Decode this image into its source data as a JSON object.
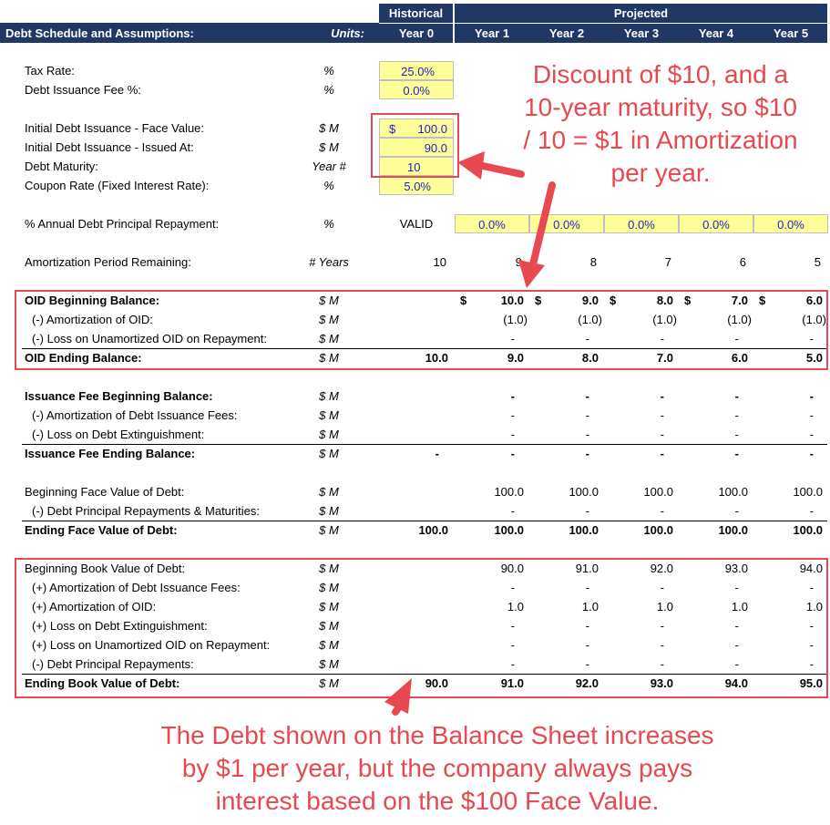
{
  "header": {
    "title": "Debt Schedule and Assumptions:",
    "units_label": "Units:",
    "historical": "Historical",
    "projected": "Projected",
    "years": [
      "Year 0",
      "Year 1",
      "Year 2",
      "Year 3",
      "Year 4",
      "Year 5"
    ]
  },
  "assumptions": {
    "tax_rate": {
      "label": "Tax Rate:",
      "unit": "%",
      "value": "25.0%"
    },
    "fee_pct": {
      "label": "Debt Issuance Fee %:",
      "unit": "%",
      "value": "0.0%"
    },
    "face_value": {
      "label": "Initial Debt Issuance - Face Value:",
      "unit": "$ M",
      "dollar": "$",
      "value": "100.0"
    },
    "issued_at": {
      "label": "Initial Debt Issuance - Issued At:",
      "unit": "$ M",
      "value": "90.0"
    },
    "maturity": {
      "label": "Debt Maturity:",
      "unit": "Year #",
      "value": "10"
    },
    "coupon": {
      "label": "Coupon Rate (Fixed Interest Rate):",
      "unit": "%",
      "value": "5.0%"
    },
    "repayment": {
      "label": "% Annual Debt Principal Repayment:",
      "unit": "%",
      "status": "VALID",
      "values": [
        "0.0%",
        "0.0%",
        "0.0%",
        "0.0%",
        "0.0%"
      ]
    },
    "amort_period": {
      "label": "Amortization Period Remaining:",
      "unit": "# Years",
      "values": [
        "10",
        "9",
        "8",
        "7",
        "6",
        "5"
      ]
    }
  },
  "oid": {
    "beginning": {
      "label": "OID Beginning Balance:",
      "unit": "$ M",
      "dollar": "$",
      "values": [
        "",
        "10.0",
        "9.0",
        "8.0",
        "7.0",
        "6.0"
      ]
    },
    "amortization": {
      "label": "(-) Amortization of OID:",
      "unit": "$ M",
      "values": [
        "",
        "(1.0)",
        "(1.0)",
        "(1.0)",
        "(1.0)",
        "(1.0)"
      ]
    },
    "loss": {
      "label": "(-) Loss on Unamortized OID on Repayment:",
      "unit": "$ M",
      "values": [
        "",
        "-",
        "-",
        "-",
        "-",
        "-"
      ]
    },
    "ending": {
      "label": "OID Ending Balance:",
      "unit": "$ M",
      "values": [
        "10.0",
        "9.0",
        "8.0",
        "7.0",
        "6.0",
        "5.0"
      ]
    }
  },
  "fee": {
    "beginning": {
      "label": "Issuance Fee Beginning Balance:",
      "unit": "$ M",
      "values": [
        "",
        "-",
        "-",
        "-",
        "-",
        "-"
      ]
    },
    "amortization": {
      "label": "(-) Amortization of Debt Issuance Fees:",
      "unit": "$ M",
      "values": [
        "",
        "-",
        "-",
        "-",
        "-",
        "-"
      ]
    },
    "loss": {
      "label": "(-) Loss on Debt Extinguishment:",
      "unit": "$ M",
      "values": [
        "",
        "-",
        "-",
        "-",
        "-",
        "-"
      ]
    },
    "ending": {
      "label": "Issuance Fee Ending Balance:",
      "unit": "$ M",
      "values": [
        "-",
        "-",
        "-",
        "-",
        "-",
        "-"
      ]
    }
  },
  "face": {
    "beginning": {
      "label": "Beginning Face Value of Debt:",
      "unit": "$ M",
      "values": [
        "",
        "100.0",
        "100.0",
        "100.0",
        "100.0",
        "100.0"
      ]
    },
    "repayments": {
      "label": "(-) Debt Principal Repayments & Maturities:",
      "unit": "$ M",
      "values": [
        "",
        "-",
        "-",
        "-",
        "-",
        "-"
      ]
    },
    "ending": {
      "label": "Ending Face Value of Debt:",
      "unit": "$ M",
      "values": [
        "100.0",
        "100.0",
        "100.0",
        "100.0",
        "100.0",
        "100.0"
      ]
    }
  },
  "book": {
    "beginning": {
      "label": "Beginning Book Value of Debt:",
      "unit": "$ M",
      "values": [
        "",
        "90.0",
        "91.0",
        "92.0",
        "93.0",
        "94.0"
      ]
    },
    "amort_fees": {
      "label": "(+) Amortization of Debt Issuance Fees:",
      "unit": "$ M",
      "values": [
        "",
        "-",
        "-",
        "-",
        "-",
        "-"
      ]
    },
    "amort_oid": {
      "label": "(+) Amortization of OID:",
      "unit": "$ M",
      "values": [
        "",
        "1.0",
        "1.0",
        "1.0",
        "1.0",
        "1.0"
      ]
    },
    "loss_ext": {
      "label": "(+) Loss on Debt Extinguishment:",
      "unit": "$ M",
      "values": [
        "",
        "-",
        "-",
        "-",
        "-",
        "-"
      ]
    },
    "loss_oid": {
      "label": "(+) Loss on Unamortized OID on Repayment:",
      "unit": "$ M",
      "values": [
        "",
        "-",
        "-",
        "-",
        "-",
        "-"
      ]
    },
    "repayments": {
      "label": "(-) Debt Principal Repayments:",
      "unit": "$ M",
      "values": [
        "",
        "-",
        "-",
        "-",
        "-",
        "-"
      ]
    },
    "ending": {
      "label": "Ending Book Value of Debt:",
      "unit": "$ M",
      "values": [
        "90.0",
        "91.0",
        "92.0",
        "93.0",
        "94.0",
        "95.0"
      ]
    }
  },
  "annotations": {
    "top": [
      "Discount of $10, and a",
      "10-year maturity, so $10",
      "/ 10 = $1 in Amortization",
      "per year."
    ],
    "bottom": [
      "The Debt shown on the Balance Sheet increases",
      "by $1 per year, but the company always pays",
      "interest based on the $100 Face Value."
    ]
  },
  "colors": {
    "header": "#1f3864",
    "input_fill": "#ffff99",
    "input_text": "#1f1fbf",
    "annotation": "#e8484f"
  }
}
